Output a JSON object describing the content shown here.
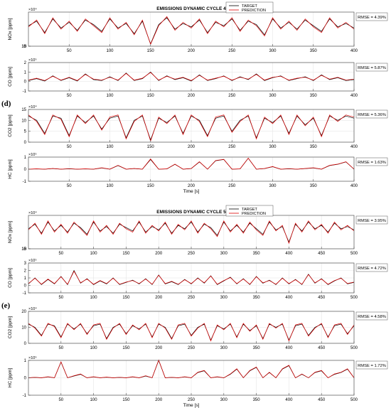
{
  "figure": {
    "labels": {
      "d": "(d)",
      "e": "(e)"
    }
  },
  "style": {
    "target_color": "#000000",
    "prediction_color": "#e00000",
    "grid_color": "#e6e6e6"
  },
  "chart_data": [
    {
      "type": "line",
      "group": "d",
      "title": "EMISSIONS DYNAMIC CYCLE 4",
      "ylabel": "NOx [ppm]",
      "xlim": [
        0,
        400
      ],
      "ylim": [
        0,
        15000
      ],
      "yticks": [
        0,
        5,
        10,
        15
      ],
      "exponent": "×10⁴",
      "xticks": [
        50,
        100,
        150,
        200,
        250,
        300,
        350,
        400
      ],
      "xlabel": "",
      "rmse": "RMSE = 4.39%",
      "legend": [
        "TARGET",
        "PREDICTION"
      ],
      "series_names": [
        "TARGET",
        "PREDICTION"
      ],
      "x": [
        0,
        10,
        20,
        30,
        40,
        50,
        60,
        70,
        80,
        90,
        100,
        110,
        120,
        130,
        140,
        150,
        160,
        170,
        180,
        190,
        200,
        210,
        220,
        230,
        240,
        250,
        260,
        270,
        280,
        290,
        300,
        310,
        320,
        330,
        340,
        350,
        360,
        370,
        380,
        390,
        400
      ],
      "target": [
        9000,
        11000,
        6000,
        12000,
        8000,
        10500,
        7000,
        11500,
        9500,
        6500,
        12000,
        8000,
        10000,
        5500,
        11000,
        1000,
        9500,
        12500,
        7500,
        10000,
        8500,
        11500,
        6000,
        10500,
        9000,
        12000,
        7000,
        11000,
        9500,
        5000,
        12000,
        8000,
        10500,
        7500,
        11500,
        9000,
        6500,
        12000,
        8500,
        10000,
        8000
      ],
      "prediction": [
        8500,
        11500,
        5500,
        12500,
        7500,
        11000,
        6500,
        12000,
        9000,
        6000,
        12500,
        7500,
        10500,
        5000,
        11500,
        800,
        9000,
        13000,
        7000,
        10500,
        8000,
        12000,
        5500,
        11000,
        8500,
        12500,
        6500,
        11500,
        9000,
        4500,
        12500,
        7500,
        11000,
        7000,
        12000,
        8500,
        6000,
        12500,
        8000,
        10500,
        7500
      ]
    },
    {
      "type": "line",
      "group": "d",
      "title": "",
      "ylabel": "CO [ppm]",
      "xlim": [
        0,
        400
      ],
      "ylim": [
        -1,
        2
      ],
      "yticks": [
        -1,
        0,
        1,
        2
      ],
      "exponent": "×10⁵",
      "xticks": [
        50,
        100,
        150,
        200,
        250,
        300,
        350,
        400
      ],
      "xlabel": "",
      "rmse": "RMSE = 5.87%",
      "x": [
        0,
        10,
        20,
        30,
        40,
        50,
        60,
        70,
        80,
        90,
        100,
        110,
        120,
        130,
        140,
        150,
        160,
        170,
        180,
        190,
        200,
        210,
        220,
        230,
        240,
        250,
        260,
        270,
        280,
        290,
        300,
        310,
        320,
        330,
        340,
        350,
        360,
        370,
        380,
        390,
        400
      ],
      "target": [
        0.1,
        0.3,
        0.05,
        0.6,
        0.1,
        0.4,
        0.05,
        0.8,
        0.2,
        0.1,
        0.5,
        0.1,
        0.9,
        0.1,
        0.3,
        1.0,
        0.1,
        0.6,
        0.2,
        0.4,
        0.05,
        0.7,
        0.1,
        0.3,
        0.6,
        0.1,
        0.5,
        0.2,
        0.8,
        0.1,
        0.4,
        0.6,
        0.1,
        0.3,
        0.5,
        0.1,
        0.7,
        0.2,
        0.4,
        0.1,
        0.2
      ],
      "prediction": [
        0.15,
        0.35,
        0.1,
        0.55,
        0.15,
        0.45,
        0.1,
        0.75,
        0.25,
        0.15,
        0.45,
        0.15,
        0.85,
        0.15,
        0.35,
        0.95,
        0.15,
        0.55,
        0.25,
        0.45,
        0.1,
        0.65,
        0.15,
        0.35,
        0.55,
        0.15,
        0.45,
        0.25,
        0.75,
        0.15,
        0.45,
        0.55,
        0.15,
        0.35,
        0.45,
        0.15,
        0.65,
        0.25,
        0.45,
        0.15,
        0.25
      ]
    },
    {
      "type": "line",
      "group": "d",
      "title": "",
      "ylabel": "CO2 [ppm]",
      "xlim": [
        0,
        400
      ],
      "ylim": [
        0,
        15
      ],
      "yticks": [
        0,
        5,
        10,
        15
      ],
      "exponent": "×10⁴",
      "xticks": [
        50,
        100,
        150,
        200,
        250,
        300,
        350,
        400
      ],
      "xlabel": "",
      "rmse": "RMSE = 5.36%",
      "x": [
        0,
        10,
        20,
        30,
        40,
        50,
        60,
        70,
        80,
        90,
        100,
        110,
        120,
        130,
        140,
        150,
        160,
        170,
        180,
        190,
        200,
        210,
        220,
        230,
        240,
        250,
        260,
        270,
        280,
        290,
        300,
        310,
        320,
        330,
        340,
        350,
        360,
        370,
        380,
        390,
        400
      ],
      "target": [
        12,
        10,
        4,
        12,
        11,
        3,
        12,
        9,
        12,
        6,
        11,
        12,
        2,
        10,
        12,
        1,
        11,
        9,
        12,
        4,
        12,
        10,
        3,
        11,
        12,
        5,
        10,
        12,
        2,
        11,
        9,
        12,
        4,
        12,
        8,
        11,
        3,
        12,
        10,
        12,
        11
      ],
      "prediction": [
        12.5,
        9.5,
        3.5,
        12.5,
        10.5,
        2.5,
        12.5,
        8.5,
        12.5,
        5.5,
        11.5,
        12.5,
        1.5,
        9.5,
        12.5,
        0.5,
        11.5,
        8.5,
        12.5,
        3.5,
        12.5,
        9.5,
        2.5,
        11.5,
        12.5,
        4.5,
        9.5,
        12.5,
        1.5,
        11.5,
        8.5,
        12.5,
        3.5,
        12.5,
        7.5,
        11.5,
        2.5,
        12.5,
        9.5,
        12.5,
        11.5
      ]
    },
    {
      "type": "line",
      "group": "d",
      "title": "",
      "ylabel": "HC [ppm]",
      "xlim": [
        0,
        400
      ],
      "ylim": [
        -1,
        1
      ],
      "yticks": [
        -1,
        0,
        1
      ],
      "exponent": "×10⁵",
      "xticks": [
        50,
        100,
        150,
        200,
        250,
        300,
        350,
        400
      ],
      "xlabel": "Time [s]",
      "rmse": "RMSE = 1.63%",
      "x": [
        0,
        10,
        20,
        30,
        40,
        50,
        60,
        70,
        80,
        90,
        100,
        110,
        120,
        130,
        140,
        150,
        160,
        170,
        180,
        190,
        200,
        210,
        220,
        230,
        240,
        250,
        260,
        270,
        280,
        290,
        300,
        310,
        320,
        330,
        340,
        350,
        360,
        370,
        380,
        390,
        400
      ],
      "target": [
        0,
        0.02,
        0,
        0.05,
        0,
        0.03,
        0,
        0.02,
        0,
        0.1,
        0,
        0.3,
        0,
        0.05,
        0,
        0.8,
        0,
        0.02,
        0.4,
        0,
        0.05,
        0.6,
        0,
        0.7,
        0.8,
        0,
        0.02,
        0.9,
        0,
        0.05,
        0.2,
        0,
        0.03,
        0,
        0.05,
        0.1,
        0,
        0.3,
        0.4,
        0.6,
        0
      ],
      "prediction": [
        0,
        0.03,
        0,
        0.06,
        0,
        0.04,
        0,
        0.03,
        0,
        0.12,
        0,
        0.32,
        0,
        0.06,
        0,
        0.85,
        0,
        0.03,
        0.42,
        0,
        0.06,
        0.62,
        0,
        0.72,
        0.82,
        0,
        0.03,
        0.92,
        0,
        0.06,
        0.22,
        0,
        0.04,
        0,
        0.06,
        0.12,
        0,
        0.32,
        0.42,
        0.62,
        0
      ]
    },
    {
      "type": "line",
      "group": "e",
      "title": "EMISSIONS DYNAMIC CYCLE 5",
      "ylabel": "NOx [ppm]",
      "xlim": [
        0,
        500
      ],
      "ylim": [
        0,
        15000
      ],
      "yticks": [
        0,
        5,
        10,
        15
      ],
      "exponent": "×10⁴",
      "xticks": [
        50,
        100,
        150,
        200,
        250,
        300,
        350,
        400,
        450,
        500
      ],
      "xlabel": "",
      "rmse": "RMSE = 3.95%",
      "legend": [
        "TARGET",
        "PREDICTION"
      ],
      "series_names": [
        "TARGET",
        "PREDICTION"
      ],
      "x": [
        0,
        10,
        20,
        30,
        40,
        50,
        60,
        70,
        80,
        90,
        100,
        110,
        120,
        130,
        140,
        150,
        160,
        170,
        180,
        190,
        200,
        210,
        220,
        230,
        240,
        250,
        260,
        270,
        280,
        290,
        300,
        310,
        320,
        330,
        340,
        350,
        360,
        370,
        380,
        390,
        400,
        410,
        420,
        430,
        440,
        450,
        460,
        470,
        480,
        490,
        500
      ],
      "target": [
        9000,
        11000,
        7000,
        12000,
        8000,
        10500,
        7500,
        11500,
        9500,
        6500,
        12000,
        8000,
        10000,
        7000,
        11000,
        9500,
        8000,
        12000,
        7500,
        10000,
        8500,
        11500,
        7000,
        10500,
        9000,
        12000,
        7500,
        11000,
        9500,
        6000,
        12000,
        8000,
        10500,
        7500,
        11500,
        9000,
        6500,
        12000,
        8500,
        10000,
        3000,
        11000,
        8000,
        12000,
        9000,
        10500,
        7500,
        11500,
        9000,
        10000,
        8500
      ],
      "prediction": [
        8500,
        11500,
        6500,
        12500,
        7500,
        11000,
        7000,
        12000,
        9000,
        6000,
        12500,
        7500,
        10500,
        6500,
        11500,
        9000,
        7500,
        12500,
        7000,
        10500,
        8000,
        12000,
        6500,
        11000,
        8500,
        12500,
        7000,
        11500,
        9000,
        5500,
        12500,
        7500,
        11000,
        7000,
        12000,
        8500,
        6000,
        12500,
        8000,
        10500,
        2500,
        11500,
        7500,
        12500,
        8500,
        11000,
        7000,
        12000,
        8500,
        10500,
        8000
      ]
    },
    {
      "type": "line",
      "group": "e",
      "title": "",
      "ylabel": "CO [ppm]",
      "xlim": [
        0,
        500
      ],
      "ylim": [
        -1,
        3
      ],
      "yticks": [
        -1,
        0,
        1,
        2,
        3
      ],
      "exponent": "×10⁵",
      "xticks": [
        50,
        100,
        150,
        200,
        250,
        300,
        350,
        400,
        450,
        500
      ],
      "xlabel": "",
      "rmse": "RMSE = 4.72%",
      "x": [
        0,
        10,
        20,
        30,
        40,
        50,
        60,
        70,
        80,
        90,
        100,
        110,
        120,
        130,
        140,
        150,
        160,
        170,
        180,
        190,
        200,
        210,
        220,
        230,
        240,
        250,
        260,
        270,
        280,
        290,
        300,
        310,
        320,
        330,
        340,
        350,
        360,
        370,
        380,
        390,
        400,
        410,
        420,
        430,
        440,
        450,
        460,
        470,
        480,
        490,
        500
      ],
      "target": [
        0.2,
        1.0,
        0.1,
        0.8,
        0.2,
        1.2,
        0.1,
        2.0,
        0.3,
        0.9,
        0.1,
        0.6,
        0.2,
        1.0,
        0.1,
        0.4,
        0.7,
        0.2,
        0.9,
        0.1,
        1.4,
        0.2,
        0.5,
        0.1,
        0.8,
        0.2,
        1.0,
        0.3,
        1.3,
        0.1,
        0.6,
        1.1,
        0.2,
        0.9,
        0.1,
        1.2,
        0.3,
        0.7,
        0.1,
        1.0,
        0.2,
        0.8,
        0.1,
        1.5,
        0.3,
        0.9,
        0.1,
        0.6,
        1.0,
        0.2,
        0.4
      ],
      "prediction": [
        0.25,
        0.95,
        0.15,
        0.85,
        0.25,
        1.15,
        0.15,
        1.9,
        0.35,
        0.85,
        0.15,
        0.65,
        0.25,
        0.95,
        0.15,
        0.45,
        0.65,
        0.25,
        0.85,
        0.15,
        1.35,
        0.25,
        0.55,
        0.15,
        0.75,
        0.25,
        0.95,
        0.35,
        1.25,
        0.15,
        0.65,
        1.05,
        0.25,
        0.85,
        0.15,
        1.15,
        0.35,
        0.65,
        0.15,
        0.95,
        0.25,
        0.75,
        0.15,
        1.45,
        0.35,
        0.85,
        0.15,
        0.65,
        0.95,
        0.25,
        0.45
      ]
    },
    {
      "type": "line",
      "group": "e",
      "title": "",
      "ylabel": "CO2 [ppm]",
      "xlim": [
        0,
        500
      ],
      "ylim": [
        0,
        20
      ],
      "yticks": [
        0,
        10,
        20
      ],
      "exponent": "×10⁴",
      "xticks": [
        50,
        100,
        150,
        200,
        250,
        300,
        350,
        400,
        450,
        500
      ],
      "xlabel": "",
      "rmse": "RMSE = 4.58%",
      "x": [
        0,
        10,
        20,
        30,
        40,
        50,
        60,
        70,
        80,
        90,
        100,
        110,
        120,
        130,
        140,
        150,
        160,
        170,
        180,
        190,
        200,
        210,
        220,
        230,
        240,
        250,
        260,
        270,
        280,
        290,
        300,
        310,
        320,
        330,
        340,
        350,
        360,
        370,
        380,
        390,
        400,
        410,
        420,
        430,
        440,
        450,
        460,
        470,
        480,
        490,
        500
      ],
      "target": [
        12,
        10,
        5,
        12,
        11,
        4,
        12,
        9,
        12,
        6,
        11,
        12,
        3,
        10,
        12,
        6,
        11,
        9,
        12,
        4,
        12,
        10,
        3,
        11,
        12,
        5,
        10,
        12,
        2,
        11,
        9,
        12,
        4,
        12,
        8,
        11,
        3,
        12,
        10,
        12,
        2,
        11,
        12,
        5,
        10,
        12,
        4,
        11,
        12,
        6,
        11
      ],
      "prediction": [
        12.5,
        9.5,
        4.5,
        12.5,
        10.5,
        3.5,
        12.5,
        8.5,
        12.5,
        5.5,
        11.5,
        12.5,
        2.5,
        9.5,
        12.5,
        5.5,
        11.5,
        8.5,
        12.5,
        3.5,
        12.5,
        9.5,
        2.5,
        11.5,
        12.5,
        4.5,
        9.5,
        12.5,
        1.5,
        11.5,
        8.5,
        12.5,
        3.5,
        12.5,
        7.5,
        11.5,
        2.5,
        12.5,
        9.5,
        12.5,
        1.5,
        11.5,
        12.5,
        4.5,
        9.5,
        12.5,
        3.5,
        11.5,
        12.5,
        5.5,
        11.5
      ]
    },
    {
      "type": "line",
      "group": "e",
      "title": "",
      "ylabel": "HC [ppm]",
      "xlim": [
        0,
        500
      ],
      "ylim": [
        -1,
        1
      ],
      "yticks": [
        -1,
        0,
        1
      ],
      "exponent": "×10⁵",
      "xticks": [
        50,
        100,
        150,
        200,
        250,
        300,
        350,
        400,
        450,
        500
      ],
      "xlabel": "Time [s]",
      "rmse": "RMSE = 1.72%",
      "x": [
        0,
        10,
        20,
        30,
        40,
        50,
        60,
        70,
        80,
        90,
        100,
        110,
        120,
        130,
        140,
        150,
        160,
        170,
        180,
        190,
        200,
        210,
        220,
        230,
        240,
        250,
        260,
        270,
        280,
        290,
        300,
        310,
        320,
        330,
        340,
        350,
        360,
        370,
        380,
        390,
        400,
        410,
        420,
        430,
        440,
        450,
        460,
        470,
        480,
        490,
        500
      ],
      "target": [
        0,
        0.02,
        0,
        0.05,
        0,
        0.9,
        0,
        0.1,
        0.2,
        0,
        0.05,
        0,
        0.03,
        0,
        0.02,
        0,
        0.05,
        0,
        0.1,
        0,
        1.0,
        0,
        0.02,
        0,
        0.05,
        0,
        0.3,
        0.4,
        0,
        0.05,
        0,
        0.2,
        0.5,
        0,
        0.4,
        0.6,
        0,
        0.3,
        0,
        0.5,
        0.7,
        0,
        0.2,
        0,
        0.3,
        0.4,
        0,
        0.2,
        0.3,
        0.5,
        0
      ],
      "prediction": [
        0,
        0.03,
        0,
        0.06,
        0,
        0.92,
        0,
        0.12,
        0.22,
        0,
        0.06,
        0,
        0.04,
        0,
        0.03,
        0,
        0.06,
        0,
        0.12,
        0,
        1.02,
        0,
        0.03,
        0,
        0.06,
        0,
        0.32,
        0.42,
        0,
        0.06,
        0,
        0.22,
        0.52,
        0,
        0.42,
        0.62,
        0,
        0.32,
        0,
        0.52,
        0.72,
        0,
        0.22,
        0,
        0.32,
        0.42,
        0,
        0.22,
        0.32,
        0.52,
        0
      ]
    }
  ]
}
